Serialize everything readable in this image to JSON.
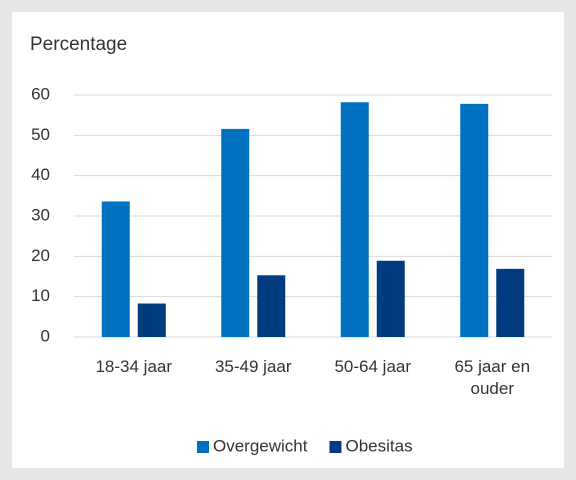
{
  "chart_data": {
    "type": "bar",
    "y_label": "Percentage",
    "categories": [
      "18-34 jaar",
      "35-49 jaar",
      "50-64 jaar",
      "65 jaar en ouder"
    ],
    "series": [
      {
        "name": "Overgewicht",
        "color": "#0070c0",
        "values": [
          33.6,
          51.6,
          58.2,
          57.8
        ]
      },
      {
        "name": "Obesitas",
        "color": "#003b7e",
        "values": [
          8.3,
          15.3,
          18.9,
          16.9
        ]
      }
    ],
    "ylim": [
      0,
      60
    ],
    "yticks": [
      0,
      10,
      20,
      30,
      40,
      50,
      60
    ],
    "grid": true,
    "legend": "bottom"
  }
}
